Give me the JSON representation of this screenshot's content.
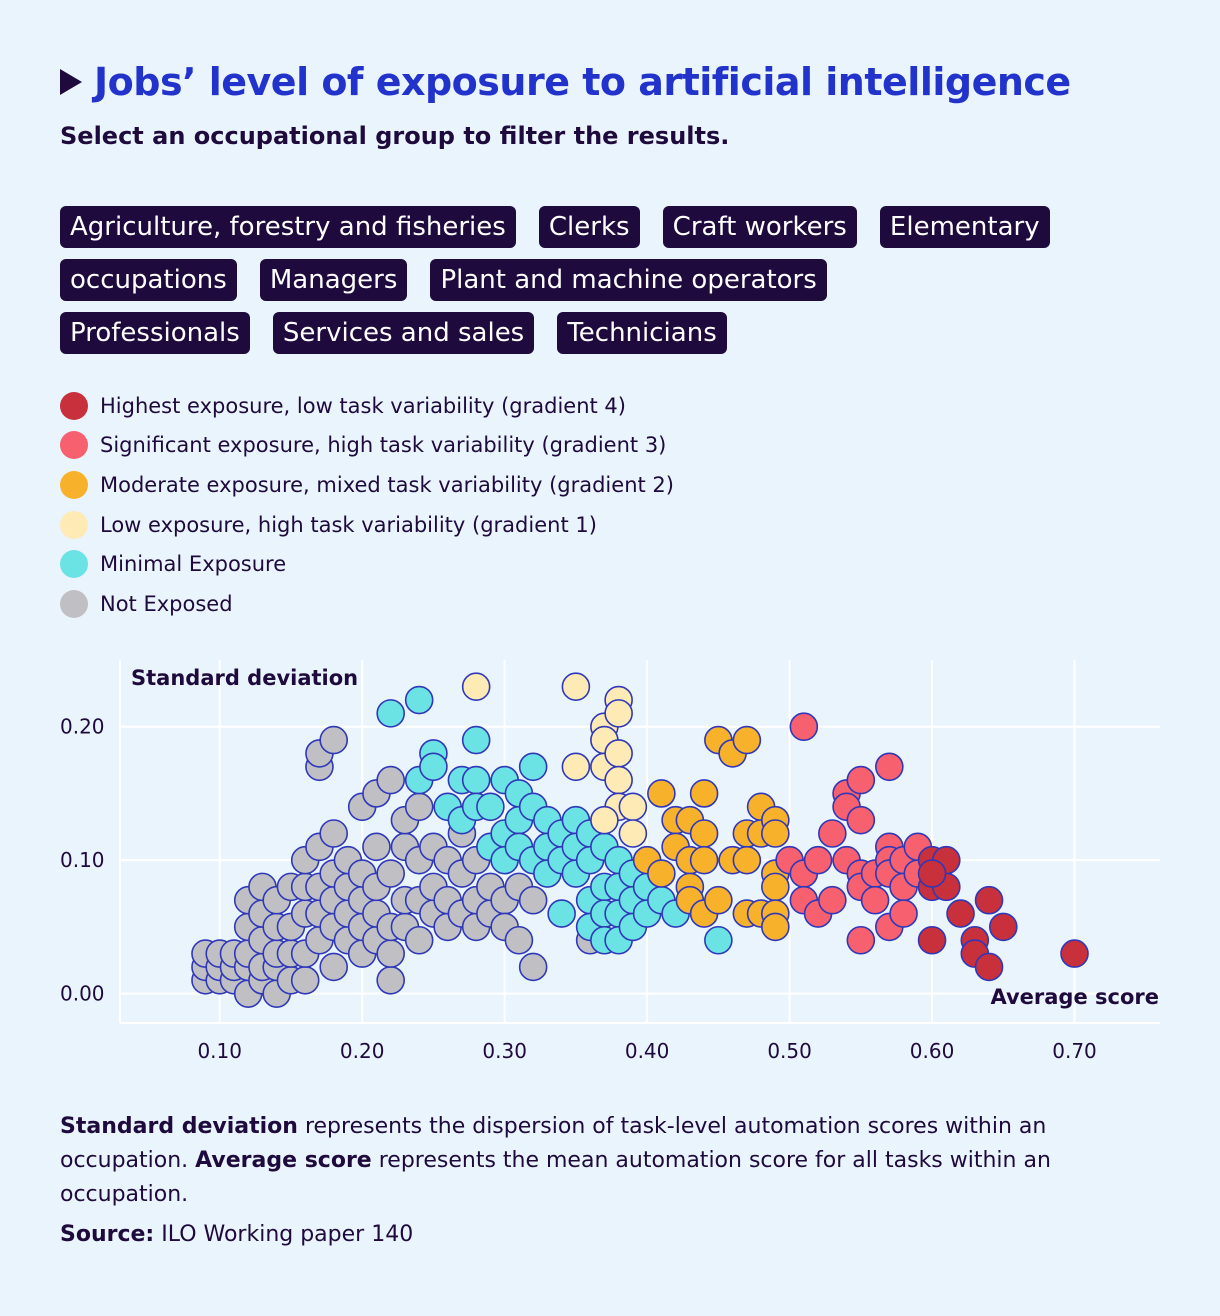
{
  "title": "Jobs’ level of exposure to artificial intelligence",
  "subtitle": "Select an occupational group to filter the results.",
  "filters": [
    "Agriculture, forestry and fisheries",
    "Clerks",
    "Craft workers",
    "Elementary occupations",
    "Managers",
    "Plant and machine operators",
    "Professionals",
    "Services and sales",
    "Technicians"
  ],
  "legend": [
    {
      "label": "Highest exposure, low task variability (gradient 4)",
      "color": "#c8303c"
    },
    {
      "label": "Significant exposure, high task variability (gradient 3)",
      "color": "#f7606e"
    },
    {
      "label": "Moderate exposure, mixed task variability (gradient 2)",
      "color": "#f8b12b"
    },
    {
      "label": "Low exposure, high task variability (gradient 1)",
      "color": "#feeab5"
    },
    {
      "label": "Minimal Exposure",
      "color": "#6be2e4"
    },
    {
      "label": "Not Exposed",
      "color": "#c0c0c4"
    }
  ],
  "footnote": {
    "sd_term": "Standard deviation",
    "sd_text": " represents the dispersion of task-level automation scores within an occupation. ",
    "avg_term": "Average score",
    "avg_text": " represents the mean automation score for all tasks within an occupation."
  },
  "source": {
    "label": "Source:",
    "text": " ILO Working paper 140"
  },
  "chart_data": {
    "type": "scatter",
    "ylabel": "Standard deviation",
    "xlabel": "Average score",
    "xlim": [
      0.03,
      0.76
    ],
    "ylim": [
      -0.022,
      0.25
    ],
    "x_ticks": [
      0.1,
      0.2,
      0.3,
      0.4,
      0.5,
      0.6,
      0.7
    ],
    "x_tick_labels": [
      "0.10",
      "0.20",
      "0.30",
      "0.40",
      "0.50",
      "0.60",
      "0.70"
    ],
    "y_ticks": [
      0.0,
      0.1,
      0.2
    ],
    "y_tick_labels": [
      "0.00",
      "0.10",
      "0.20"
    ],
    "series": [
      {
        "name": "Not Exposed",
        "color": "#c0c0c4",
        "points": [
          [
            0.09,
            0.01
          ],
          [
            0.09,
            0.02
          ],
          [
            0.09,
            0.03
          ],
          [
            0.1,
            0.01
          ],
          [
            0.1,
            0.02
          ],
          [
            0.1,
            0.03
          ],
          [
            0.11,
            0.01
          ],
          [
            0.11,
            0.02
          ],
          [
            0.11,
            0.03
          ],
          [
            0.12,
            0.0
          ],
          [
            0.12,
            0.02
          ],
          [
            0.12,
            0.03
          ],
          [
            0.12,
            0.05
          ],
          [
            0.12,
            0.07
          ],
          [
            0.13,
            0.01
          ],
          [
            0.13,
            0.02
          ],
          [
            0.13,
            0.04
          ],
          [
            0.13,
            0.06
          ],
          [
            0.13,
            0.08
          ],
          [
            0.14,
            0.0
          ],
          [
            0.14,
            0.02
          ],
          [
            0.14,
            0.03
          ],
          [
            0.14,
            0.05
          ],
          [
            0.14,
            0.07
          ],
          [
            0.15,
            0.01
          ],
          [
            0.15,
            0.03
          ],
          [
            0.15,
            0.05
          ],
          [
            0.15,
            0.08
          ],
          [
            0.16,
            0.01
          ],
          [
            0.16,
            0.03
          ],
          [
            0.16,
            0.06
          ],
          [
            0.16,
            0.08
          ],
          [
            0.16,
            0.1
          ],
          [
            0.17,
            0.04
          ],
          [
            0.17,
            0.06
          ],
          [
            0.17,
            0.08
          ],
          [
            0.17,
            0.11
          ],
          [
            0.17,
            0.17
          ],
          [
            0.17,
            0.18
          ],
          [
            0.18,
            0.02
          ],
          [
            0.18,
            0.05
          ],
          [
            0.18,
            0.07
          ],
          [
            0.18,
            0.09
          ],
          [
            0.18,
            0.12
          ],
          [
            0.18,
            0.19
          ],
          [
            0.19,
            0.04
          ],
          [
            0.19,
            0.06
          ],
          [
            0.19,
            0.08
          ],
          [
            0.19,
            0.1
          ],
          [
            0.2,
            0.03
          ],
          [
            0.2,
            0.05
          ],
          [
            0.2,
            0.07
          ],
          [
            0.2,
            0.09
          ],
          [
            0.2,
            0.14
          ],
          [
            0.21,
            0.04
          ],
          [
            0.21,
            0.06
          ],
          [
            0.21,
            0.08
          ],
          [
            0.21,
            0.11
          ],
          [
            0.21,
            0.15
          ],
          [
            0.22,
            0.01
          ],
          [
            0.22,
            0.03
          ],
          [
            0.22,
            0.05
          ],
          [
            0.22,
            0.09
          ],
          [
            0.22,
            0.16
          ],
          [
            0.23,
            0.05
          ],
          [
            0.23,
            0.07
          ],
          [
            0.23,
            0.11
          ],
          [
            0.23,
            0.13
          ],
          [
            0.24,
            0.04
          ],
          [
            0.24,
            0.07
          ],
          [
            0.24,
            0.1
          ],
          [
            0.24,
            0.14
          ],
          [
            0.25,
            0.06
          ],
          [
            0.25,
            0.08
          ],
          [
            0.25,
            0.11
          ],
          [
            0.26,
            0.05
          ],
          [
            0.26,
            0.07
          ],
          [
            0.26,
            0.1
          ],
          [
            0.27,
            0.06
          ],
          [
            0.27,
            0.09
          ],
          [
            0.27,
            0.12
          ],
          [
            0.28,
            0.05
          ],
          [
            0.28,
            0.07
          ],
          [
            0.28,
            0.1
          ],
          [
            0.29,
            0.06
          ],
          [
            0.29,
            0.08
          ],
          [
            0.3,
            0.07
          ],
          [
            0.3,
            0.05
          ],
          [
            0.31,
            0.04
          ],
          [
            0.31,
            0.08
          ],
          [
            0.32,
            0.02
          ],
          [
            0.32,
            0.07
          ],
          [
            0.36,
            0.04
          ]
        ]
      },
      {
        "name": "Minimal Exposure",
        "color": "#6be2e4",
        "points": [
          [
            0.22,
            0.21
          ],
          [
            0.24,
            0.22
          ],
          [
            0.24,
            0.16
          ],
          [
            0.25,
            0.18
          ],
          [
            0.25,
            0.17
          ],
          [
            0.26,
            0.14
          ],
          [
            0.27,
            0.16
          ],
          [
            0.27,
            0.13
          ],
          [
            0.28,
            0.19
          ],
          [
            0.28,
            0.16
          ],
          [
            0.28,
            0.14
          ],
          [
            0.29,
            0.14
          ],
          [
            0.29,
            0.11
          ],
          [
            0.3,
            0.16
          ],
          [
            0.3,
            0.12
          ],
          [
            0.3,
            0.1
          ],
          [
            0.31,
            0.15
          ],
          [
            0.31,
            0.13
          ],
          [
            0.31,
            0.11
          ],
          [
            0.32,
            0.17
          ],
          [
            0.32,
            0.14
          ],
          [
            0.32,
            0.1
          ],
          [
            0.33,
            0.13
          ],
          [
            0.33,
            0.11
          ],
          [
            0.33,
            0.09
          ],
          [
            0.34,
            0.12
          ],
          [
            0.34,
            0.1
          ],
          [
            0.34,
            0.06
          ],
          [
            0.35,
            0.13
          ],
          [
            0.35,
            0.11
          ],
          [
            0.35,
            0.09
          ],
          [
            0.36,
            0.12
          ],
          [
            0.36,
            0.1
          ],
          [
            0.36,
            0.07
          ],
          [
            0.36,
            0.05
          ],
          [
            0.37,
            0.11
          ],
          [
            0.37,
            0.08
          ],
          [
            0.37,
            0.06
          ],
          [
            0.37,
            0.04
          ],
          [
            0.38,
            0.1
          ],
          [
            0.38,
            0.08
          ],
          [
            0.38,
            0.06
          ],
          [
            0.38,
            0.04
          ],
          [
            0.39,
            0.09
          ],
          [
            0.39,
            0.07
          ],
          [
            0.39,
            0.05
          ],
          [
            0.4,
            0.08
          ],
          [
            0.4,
            0.06
          ],
          [
            0.41,
            0.07
          ],
          [
            0.42,
            0.06
          ],
          [
            0.45,
            0.04
          ]
        ]
      },
      {
        "name": "Low exposure, high task variability (gradient 1)",
        "color": "#feeab5",
        "points": [
          [
            0.28,
            0.23
          ],
          [
            0.35,
            0.23
          ],
          [
            0.35,
            0.17
          ],
          [
            0.37,
            0.2
          ],
          [
            0.37,
            0.19
          ],
          [
            0.37,
            0.17
          ],
          [
            0.38,
            0.22
          ],
          [
            0.38,
            0.21
          ],
          [
            0.38,
            0.18
          ],
          [
            0.38,
            0.16
          ],
          [
            0.38,
            0.14
          ],
          [
            0.39,
            0.14
          ],
          [
            0.39,
            0.12
          ],
          [
            0.37,
            0.13
          ]
        ]
      },
      {
        "name": "Moderate exposure, mixed task variability (gradient 2)",
        "color": "#f8b12b",
        "points": [
          [
            0.4,
            0.1
          ],
          [
            0.41,
            0.15
          ],
          [
            0.41,
            0.09
          ],
          [
            0.42,
            0.13
          ],
          [
            0.42,
            0.11
          ],
          [
            0.43,
            0.13
          ],
          [
            0.43,
            0.1
          ],
          [
            0.43,
            0.08
          ],
          [
            0.43,
            0.07
          ],
          [
            0.44,
            0.15
          ],
          [
            0.44,
            0.12
          ],
          [
            0.44,
            0.1
          ],
          [
            0.44,
            0.06
          ],
          [
            0.45,
            0.19
          ],
          [
            0.45,
            0.07
          ],
          [
            0.46,
            0.18
          ],
          [
            0.46,
            0.1
          ],
          [
            0.47,
            0.19
          ],
          [
            0.47,
            0.12
          ],
          [
            0.47,
            0.1
          ],
          [
            0.47,
            0.06
          ],
          [
            0.48,
            0.14
          ],
          [
            0.48,
            0.12
          ],
          [
            0.48,
            0.06
          ],
          [
            0.49,
            0.13
          ],
          [
            0.49,
            0.12
          ],
          [
            0.49,
            0.09
          ],
          [
            0.49,
            0.08
          ],
          [
            0.49,
            0.06
          ],
          [
            0.49,
            0.05
          ]
        ]
      },
      {
        "name": "Significant exposure, high task variability (gradient 3)",
        "color": "#f7606e",
        "points": [
          [
            0.5,
            0.1
          ],
          [
            0.51,
            0.2
          ],
          [
            0.51,
            0.09
          ],
          [
            0.51,
            0.07
          ],
          [
            0.52,
            0.1
          ],
          [
            0.52,
            0.06
          ],
          [
            0.53,
            0.12
          ],
          [
            0.53,
            0.07
          ],
          [
            0.54,
            0.15
          ],
          [
            0.54,
            0.14
          ],
          [
            0.54,
            0.1
          ],
          [
            0.55,
            0.16
          ],
          [
            0.55,
            0.13
          ],
          [
            0.55,
            0.09
          ],
          [
            0.55,
            0.08
          ],
          [
            0.55,
            0.04
          ],
          [
            0.56,
            0.09
          ],
          [
            0.56,
            0.07
          ],
          [
            0.57,
            0.17
          ],
          [
            0.57,
            0.11
          ],
          [
            0.57,
            0.1
          ],
          [
            0.57,
            0.09
          ],
          [
            0.57,
            0.05
          ],
          [
            0.58,
            0.1
          ],
          [
            0.58,
            0.08
          ],
          [
            0.58,
            0.06
          ],
          [
            0.59,
            0.11
          ],
          [
            0.59,
            0.09
          ]
        ]
      },
      {
        "name": "Highest exposure, low task variability (gradient 4)",
        "color": "#c8303c",
        "points": [
          [
            0.6,
            0.1
          ],
          [
            0.6,
            0.08
          ],
          [
            0.6,
            0.04
          ],
          [
            0.61,
            0.1
          ],
          [
            0.61,
            0.08
          ],
          [
            0.62,
            0.06
          ],
          [
            0.63,
            0.04
          ],
          [
            0.63,
            0.03
          ],
          [
            0.64,
            0.07
          ],
          [
            0.64,
            0.02
          ],
          [
            0.65,
            0.05
          ],
          [
            0.7,
            0.03
          ],
          [
            0.6,
            0.09
          ]
        ]
      }
    ]
  }
}
